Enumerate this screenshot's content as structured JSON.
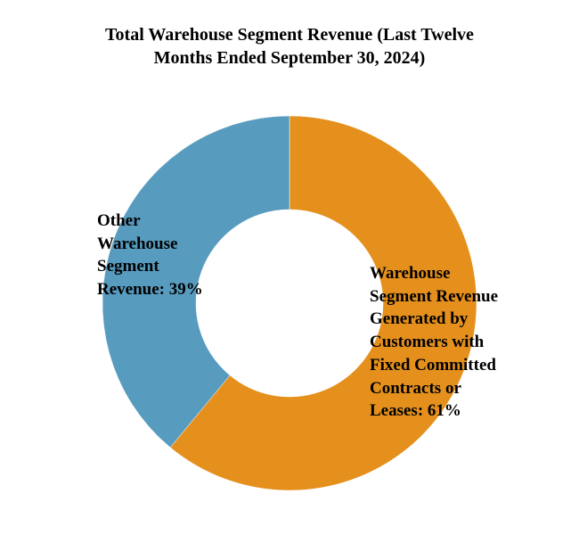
{
  "chart_data": {
    "type": "donut",
    "title": "Total Warehouse Segment Revenue (Last Twelve Months Ended September 30, 2024)",
    "values": [
      61,
      39
    ],
    "value_labels": [
      "Warehouse Segment Revenue Generated by Customers with Fixed Committed Contracts or Leases: 61%",
      "Other Warehouse Segment Revenue: 39%"
    ],
    "colors": [
      "#e5901d",
      "#579bbf"
    ]
  }
}
